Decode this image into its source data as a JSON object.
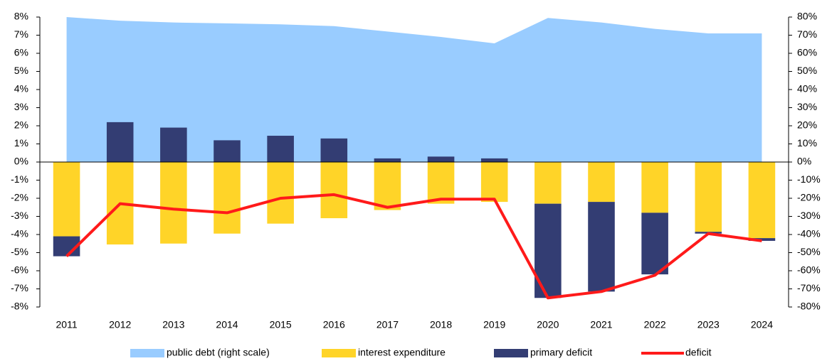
{
  "chart_data": {
    "type": "combo",
    "categories": [
      "2011",
      "2012",
      "2013",
      "2014",
      "2015",
      "2016",
      "2017",
      "2018",
      "2019",
      "2020",
      "2021",
      "2022",
      "2023",
      "2024"
    ],
    "series": [
      {
        "name": "public debt (right scale)",
        "type": "area",
        "axis": "y2",
        "color": "#99ccff",
        "values": [
          80,
          78,
          77,
          76.5,
          76,
          75,
          72,
          69,
          65.5,
          79.5,
          77,
          73.5,
          71,
          71
        ]
      },
      {
        "name": "interest expenditure",
        "type": "bar",
        "color": "#ffd428",
        "values": [
          -4.1,
          -4.55,
          -4.5,
          -3.95,
          -3.4,
          -3.1,
          -2.65,
          -2.3,
          -2.2,
          -2.3,
          -2.2,
          -2.8,
          -3.85,
          -4.2
        ]
      },
      {
        "name": "primary deficit",
        "type": "bar",
        "color": "#333d73",
        "values": [
          -1.1,
          2.2,
          1.9,
          1.2,
          1.45,
          1.3,
          0.2,
          0.3,
          0.2,
          -5.2,
          -4.95,
          -3.4,
          -0.1,
          -0.15
        ]
      },
      {
        "name": "deficit",
        "type": "line",
        "color": "#ff1a1a",
        "values": [
          -5.2,
          -2.3,
          -2.6,
          -2.8,
          -2.0,
          -1.8,
          -2.5,
          -2.05,
          -2.05,
          -7.5,
          -7.15,
          -6.25,
          -3.95,
          -4.35
        ]
      }
    ],
    "ylim": [
      -8,
      8
    ],
    "yticks": [
      {
        "value": -8,
        "label": "-8%"
      },
      {
        "value": -7,
        "label": "-7%"
      },
      {
        "value": -6,
        "label": "-6%"
      },
      {
        "value": -5,
        "label": "-5%"
      },
      {
        "value": -4,
        "label": "-4%"
      },
      {
        "value": -3,
        "label": "-3%"
      },
      {
        "value": -2,
        "label": "-2%"
      },
      {
        "value": -1,
        "label": "-1%"
      },
      {
        "value": 0,
        "label": "0%"
      },
      {
        "value": 1,
        "label": "1%"
      },
      {
        "value": 2,
        "label": "2%"
      },
      {
        "value": 3,
        "label": "3%"
      },
      {
        "value": 4,
        "label": "4%"
      },
      {
        "value": 5,
        "label": "5%"
      },
      {
        "value": 6,
        "label": "6%"
      },
      {
        "value": 7,
        "label": "7%"
      },
      {
        "value": 8,
        "label": "8%"
      }
    ],
    "y2lim": [
      -80,
      80
    ],
    "y2ticks": [
      {
        "value": -80,
        "label": "-80%"
      },
      {
        "value": -70,
        "label": "-70%"
      },
      {
        "value": -60,
        "label": "-60%"
      },
      {
        "value": -50,
        "label": "-50%"
      },
      {
        "value": -40,
        "label": "-40%"
      },
      {
        "value": -30,
        "label": "-30%"
      },
      {
        "value": -20,
        "label": "-20%"
      },
      {
        "value": -10,
        "label": "-10%"
      },
      {
        "value": 0,
        "label": "0%"
      },
      {
        "value": 10,
        "label": "10%"
      },
      {
        "value": 20,
        "label": "20%"
      },
      {
        "value": 30,
        "label": "30%"
      },
      {
        "value": 40,
        "label": "40%"
      },
      {
        "value": 50,
        "label": "50%"
      },
      {
        "value": 60,
        "label": "60%"
      },
      {
        "value": 70,
        "label": "70%"
      },
      {
        "value": 80,
        "label": "80%"
      }
    ],
    "legend": "bottom"
  }
}
